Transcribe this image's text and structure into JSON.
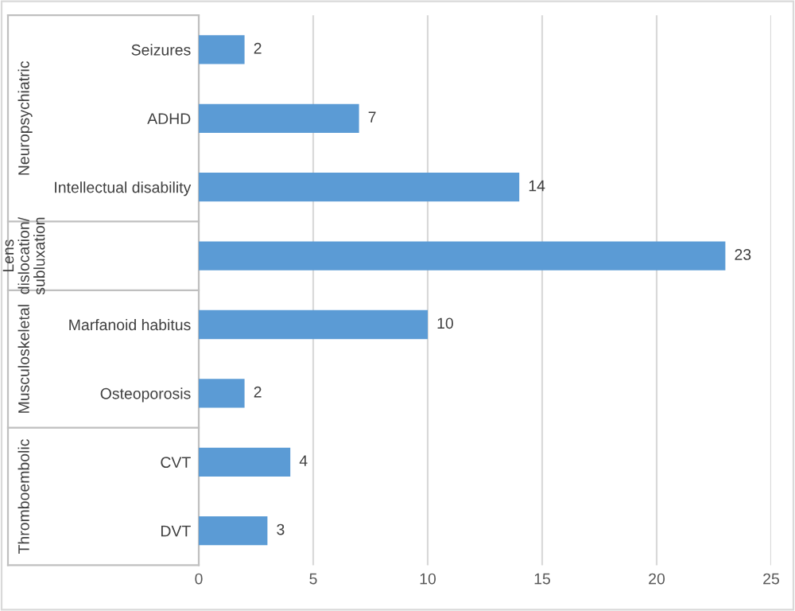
{
  "chart_data": {
    "type": "bar",
    "orientation": "horizontal",
    "categories": [
      "Seizures",
      "ADHD",
      "Intellectual disability",
      null,
      "Marfanoid habitus",
      "Osteoporosis",
      "CVT",
      "DVT"
    ],
    "values": [
      2,
      7,
      14,
      23,
      10,
      2,
      4,
      3
    ],
    "color": "#5b9bd5",
    "xlim": [
      0,
      25
    ],
    "xticks": [
      0,
      5,
      10,
      15,
      20,
      25
    ],
    "grid": "x",
    "data_labels": true,
    "annotations": [
      "Neuropsychiatric",
      "Lens\ndislocation/\nsubluxation",
      "Musculoskeletal",
      "Thromboembolic"
    ]
  }
}
